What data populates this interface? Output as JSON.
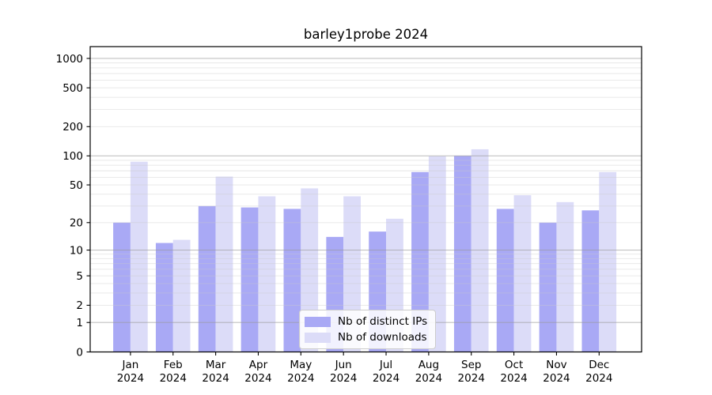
{
  "chart_data": {
    "type": "bar",
    "title": "barley1probe 2024",
    "categories": [
      "Jan",
      "Feb",
      "Mar",
      "Apr",
      "May",
      "Jun",
      "Jul",
      "Aug",
      "Sep",
      "Oct",
      "Nov",
      "Dec"
    ],
    "x_tick_second_line": "2024",
    "series": [
      {
        "name": "Nb of distinct IPs",
        "color": "#a9a9f5",
        "values": [
          20,
          12,
          30,
          29,
          28,
          14,
          16,
          68,
          100,
          28,
          20,
          27
        ]
      },
      {
        "name": "Nb of downloads",
        "color": "#dcdcf8",
        "values": [
          87,
          13,
          61,
          38,
          46,
          38,
          22,
          99,
          117,
          39,
          33,
          68
        ]
      }
    ],
    "yticks": [
      0,
      1,
      2,
      5,
      10,
      20,
      50,
      100,
      200,
      500,
      1000
    ],
    "y_scale": "log10(1+x)",
    "ylim": [
      0,
      1320
    ],
    "grid": true,
    "legend_position": "lower center",
    "colors": {
      "major_grid": "#9a9a9a",
      "minor_grid": "#c9c9c9",
      "axis": "#000000",
      "background": "#ffffff",
      "text": "#000000"
    }
  }
}
